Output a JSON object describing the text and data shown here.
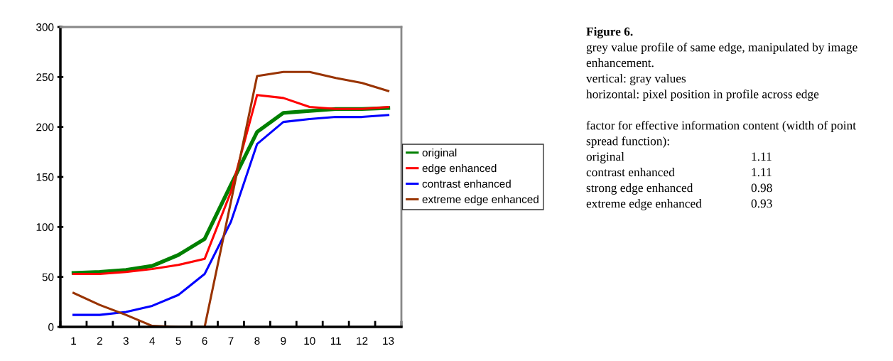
{
  "chart_data": {
    "type": "line",
    "categories": [
      "1",
      "2",
      "3",
      "4",
      "5",
      "6",
      "7",
      "8",
      "9",
      "10",
      "11",
      "12",
      "13"
    ],
    "ylim": [
      0,
      300
    ],
    "yticks": [
      0,
      50,
      100,
      150,
      200,
      250,
      300
    ],
    "grid": false,
    "legend": "right",
    "marker": "none",
    "line_style": "solid",
    "series": [
      {
        "name": "original",
        "color": "#008000",
        "values": [
          54,
          55,
          57,
          61,
          72,
          88,
          142,
          195,
          214,
          216,
          218,
          218,
          219
        ]
      },
      {
        "name": "edge enhanced",
        "color": "#ff0000",
        "values": [
          53,
          53,
          55,
          58,
          62,
          68,
          135,
          232,
          229,
          220,
          218,
          218,
          220
        ]
      },
      {
        "name": "contrast enhanced",
        "color": "#0000ff",
        "values": [
          12,
          12,
          15,
          21,
          32,
          53,
          105,
          183,
          205,
          208,
          210,
          210,
          212
        ]
      },
      {
        "name": "extreme edge enhanced",
        "color": "#993300",
        "values": [
          34,
          22,
          12,
          1,
          0,
          0,
          125,
          251,
          255,
          255,
          249,
          244,
          236
        ]
      }
    ],
    "annotations": [
      "Figure 6.",
      "grey value profile of same edge, manipulated by image enhancement.",
      "vertical: gray values",
      "horizontal: pixel position in profile across edge",
      "factor for effective information content (width of point spread function):",
      "original 1.11",
      "contrast enhanced 1.11",
      "strong edge enhanced 0.98",
      "extreme edge enhanced 0.93"
    ]
  }
}
